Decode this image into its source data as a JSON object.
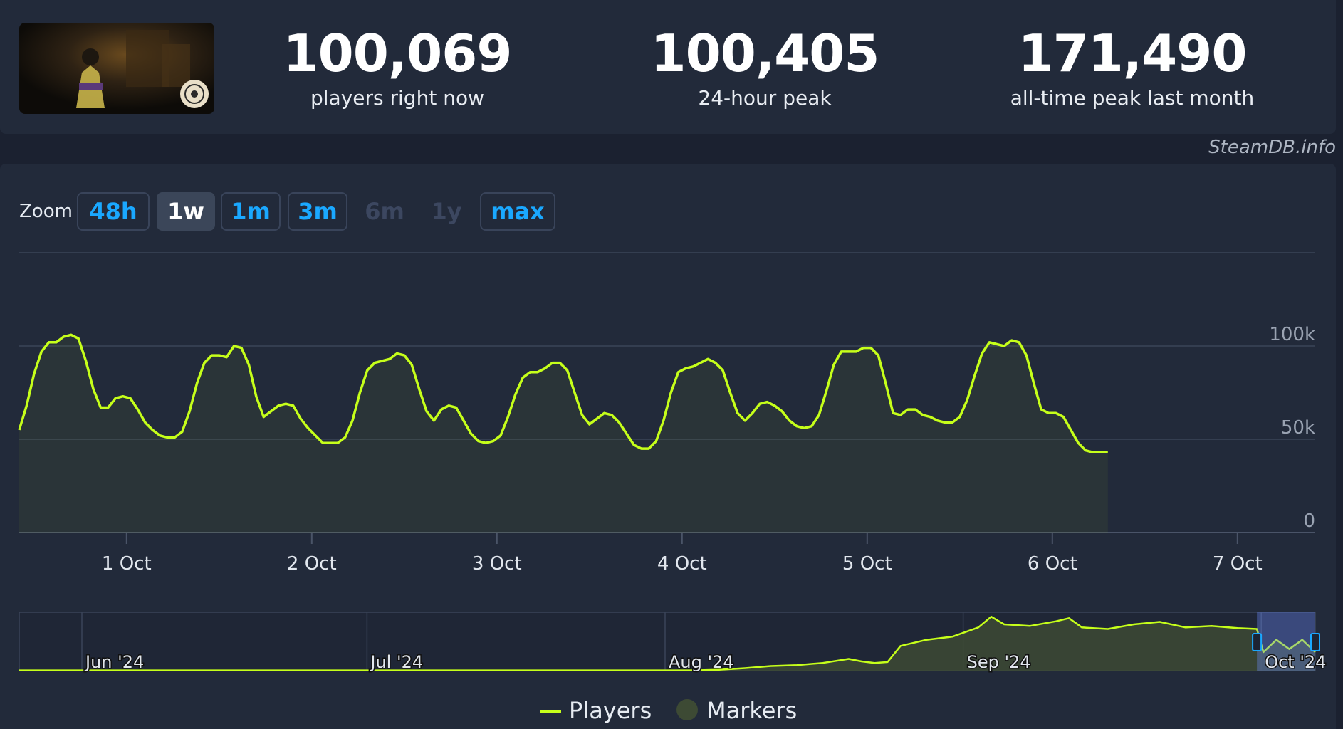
{
  "stats": [
    {
      "value": "100,069",
      "label": "players right now"
    },
    {
      "value": "100,405",
      "label": "24-hour peak"
    },
    {
      "value": "171,490",
      "label": "all-time peak last month"
    }
  ],
  "credit": "SteamDB.info",
  "zoom": {
    "label": "Zoom",
    "buttons": [
      {
        "label": "48h",
        "state": "enabled"
      },
      {
        "label": "1w",
        "state": "active"
      },
      {
        "label": "1m",
        "state": "enabled"
      },
      {
        "label": "3m",
        "state": "enabled"
      },
      {
        "label": "6m",
        "state": "disabled"
      },
      {
        "label": "1y",
        "state": "disabled"
      },
      {
        "label": "max",
        "state": "enabled"
      }
    ]
  },
  "colors": {
    "series": "#c6ff1a",
    "markers": "#3d4a34",
    "accent": "#1aa8ff",
    "background": "#1b2130",
    "panel": "#222a3a"
  },
  "chart_data": [
    {
      "type": "line",
      "x_unit": "days since 1 Oct 00:00",
      "x_ticks": [
        {
          "label": "1 Oct",
          "value": 0
        },
        {
          "label": "2 Oct",
          "value": 1
        },
        {
          "label": "3 Oct",
          "value": 2
        },
        {
          "label": "4 Oct",
          "value": 3
        },
        {
          "label": "5 Oct",
          "value": 4
        },
        {
          "label": "6 Oct",
          "value": 5
        },
        {
          "label": "7 Oct",
          "value": 6
        }
      ],
      "xlim": [
        -0.58,
        6.42
      ],
      "ylim": [
        0,
        150000
      ],
      "y_ticks": [
        {
          "label": "0",
          "value": 0
        },
        {
          "label": "50k",
          "value": 50000
        },
        {
          "label": "100k",
          "value": 100000
        }
      ],
      "grid": true,
      "series": [
        {
          "name": "Players",
          "points": [
            [
              -0.58,
              55000
            ],
            [
              -0.54,
              68000
            ],
            [
              -0.5,
              85000
            ],
            [
              -0.46,
              97000
            ],
            [
              -0.42,
              102000
            ],
            [
              -0.38,
              102000
            ],
            [
              -0.34,
              105000
            ],
            [
              -0.3,
              106000
            ],
            [
              -0.26,
              104000
            ],
            [
              -0.22,
              92000
            ],
            [
              -0.18,
              77000
            ],
            [
              -0.14,
              67000
            ],
            [
              -0.1,
              67000
            ],
            [
              -0.06,
              72000
            ],
            [
              -0.02,
              73000
            ],
            [
              0.02,
              72000
            ],
            [
              0.06,
              66000
            ],
            [
              0.1,
              59000
            ],
            [
              0.14,
              55000
            ],
            [
              0.18,
              52000
            ],
            [
              0.22,
              51000
            ],
            [
              0.26,
              51000
            ],
            [
              0.3,
              54000
            ],
            [
              0.34,
              65000
            ],
            [
              0.38,
              80000
            ],
            [
              0.42,
              91000
            ],
            [
              0.46,
              95000
            ],
            [
              0.5,
              95000
            ],
            [
              0.54,
              94000
            ],
            [
              0.58,
              100000
            ],
            [
              0.62,
              99000
            ],
            [
              0.66,
              90000
            ],
            [
              0.7,
              73000
            ],
            [
              0.74,
              62000
            ],
            [
              0.78,
              65000
            ],
            [
              0.82,
              68000
            ],
            [
              0.86,
              69000
            ],
            [
              0.9,
              68000
            ],
            [
              0.94,
              61000
            ],
            [
              0.98,
              56000
            ],
            [
              1.02,
              52000
            ],
            [
              1.06,
              48000
            ],
            [
              1.1,
              48000
            ],
            [
              1.14,
              48000
            ],
            [
              1.18,
              51000
            ],
            [
              1.22,
              60000
            ],
            [
              1.26,
              75000
            ],
            [
              1.3,
              87000
            ],
            [
              1.34,
              91000
            ],
            [
              1.38,
              92000
            ],
            [
              1.42,
              93000
            ],
            [
              1.46,
              96000
            ],
            [
              1.5,
              95000
            ],
            [
              1.54,
              90000
            ],
            [
              1.58,
              77000
            ],
            [
              1.62,
              65000
            ],
            [
              1.66,
              60000
            ],
            [
              1.7,
              66000
            ],
            [
              1.74,
              68000
            ],
            [
              1.78,
              67000
            ],
            [
              1.82,
              60000
            ],
            [
              1.86,
              53000
            ],
            [
              1.9,
              49000
            ],
            [
              1.94,
              48000
            ],
            [
              1.98,
              49000
            ],
            [
              2.02,
              52000
            ],
            [
              2.06,
              62000
            ],
            [
              2.1,
              74000
            ],
            [
              2.14,
              83000
            ],
            [
              2.18,
              86000
            ],
            [
              2.22,
              86000
            ],
            [
              2.26,
              88000
            ],
            [
              2.3,
              91000
            ],
            [
              2.34,
              91000
            ],
            [
              2.38,
              87000
            ],
            [
              2.42,
              75000
            ],
            [
              2.46,
              63000
            ],
            [
              2.5,
              58000
            ],
            [
              2.54,
              61000
            ],
            [
              2.58,
              64000
            ],
            [
              2.62,
              63000
            ],
            [
              2.66,
              59000
            ],
            [
              2.7,
              53000
            ],
            [
              2.74,
              47000
            ],
            [
              2.78,
              45000
            ],
            [
              2.82,
              45000
            ],
            [
              2.86,
              49000
            ],
            [
              2.9,
              60000
            ],
            [
              2.94,
              75000
            ],
            [
              2.98,
              86000
            ],
            [
              3.02,
              88000
            ],
            [
              3.06,
              89000
            ],
            [
              3.1,
              91000
            ],
            [
              3.14,
              93000
            ],
            [
              3.18,
              91000
            ],
            [
              3.22,
              87000
            ],
            [
              3.26,
              75000
            ],
            [
              3.3,
              64000
            ],
            [
              3.34,
              60000
            ],
            [
              3.38,
              64000
            ],
            [
              3.42,
              69000
            ],
            [
              3.46,
              70000
            ],
            [
              3.5,
              68000
            ],
            [
              3.54,
              65000
            ],
            [
              3.58,
              60000
            ],
            [
              3.62,
              57000
            ],
            [
              3.66,
              56000
            ],
            [
              3.7,
              57000
            ],
            [
              3.74,
              63000
            ],
            [
              3.78,
              76000
            ],
            [
              3.82,
              90000
            ],
            [
              3.86,
              97000
            ],
            [
              3.9,
              97000
            ],
            [
              3.94,
              97000
            ],
            [
              3.98,
              99000
            ],
            [
              4.02,
              99000
            ],
            [
              4.06,
              95000
            ],
            [
              4.1,
              80000
            ],
            [
              4.14,
              64000
            ],
            [
              4.18,
              63000
            ],
            [
              4.22,
              66000
            ],
            [
              4.26,
              66000
            ],
            [
              4.3,
              63000
            ],
            [
              4.34,
              62000
            ],
            [
              4.38,
              60000
            ],
            [
              4.42,
              59000
            ],
            [
              4.46,
              59000
            ],
            [
              4.5,
              62000
            ],
            [
              4.54,
              71000
            ],
            [
              4.58,
              84000
            ],
            [
              4.62,
              96000
            ],
            [
              4.66,
              102000
            ],
            [
              4.7,
              101000
            ],
            [
              4.74,
              100000
            ],
            [
              4.78,
              103000
            ],
            [
              4.82,
              102000
            ],
            [
              4.86,
              95000
            ],
            [
              4.9,
              80000
            ],
            [
              4.94,
              66000
            ],
            [
              4.98,
              64000
            ],
            [
              5.02,
              64000
            ],
            [
              5.06,
              62000
            ],
            [
              5.1,
              55000
            ],
            [
              5.14,
              48000
            ],
            [
              5.18,
              44000
            ],
            [
              5.22,
              43000
            ],
            [
              5.26,
              43000
            ],
            [
              5.3,
              43000
            ]
          ]
        }
      ]
    },
    {
      "type": "area",
      "role": "navigator",
      "x_ticks": [
        {
          "label": "Jun '24",
          "value": 0.05
        },
        {
          "label": "Jul '24",
          "value": 0.27
        },
        {
          "label": "Aug '24",
          "value": 0.5
        },
        {
          "label": "Sep '24",
          "value": 0.73
        },
        {
          "label": "Oct '24",
          "value": 0.96
        }
      ],
      "selected_range": [
        0.955,
        1.0
      ],
      "series": [
        {
          "name": "Players",
          "points": [
            [
              0,
              1000
            ],
            [
              0.1,
              1000
            ],
            [
              0.2,
              1000
            ],
            [
              0.3,
              1000
            ],
            [
              0.4,
              1000
            ],
            [
              0.52,
              1000
            ],
            [
              0.54,
              3000
            ],
            [
              0.56,
              8000
            ],
            [
              0.58,
              15000
            ],
            [
              0.6,
              18000
            ],
            [
              0.62,
              25000
            ],
            [
              0.64,
              38000
            ],
            [
              0.65,
              30000
            ],
            [
              0.66,
              25000
            ],
            [
              0.67,
              28000
            ],
            [
              0.68,
              80000
            ],
            [
              0.7,
              100000
            ],
            [
              0.72,
              110000
            ],
            [
              0.74,
              140000
            ],
            [
              0.75,
              175000
            ],
            [
              0.76,
              150000
            ],
            [
              0.78,
              145000
            ],
            [
              0.8,
              160000
            ],
            [
              0.81,
              170000
            ],
            [
              0.82,
              140000
            ],
            [
              0.84,
              135000
            ],
            [
              0.86,
              150000
            ],
            [
              0.88,
              158000
            ],
            [
              0.9,
              140000
            ],
            [
              0.92,
              145000
            ],
            [
              0.94,
              138000
            ],
            [
              0.955,
              135000
            ],
            [
              0.96,
              60000
            ],
            [
              0.97,
              100000
            ],
            [
              0.98,
              70000
            ],
            [
              0.99,
              100000
            ],
            [
              1.0,
              60000
            ]
          ]
        }
      ]
    }
  ],
  "legend": {
    "placement": "bottom-center",
    "items": [
      {
        "label": "Players",
        "symbol": "line"
      },
      {
        "label": "Markers",
        "symbol": "circle"
      }
    ]
  }
}
